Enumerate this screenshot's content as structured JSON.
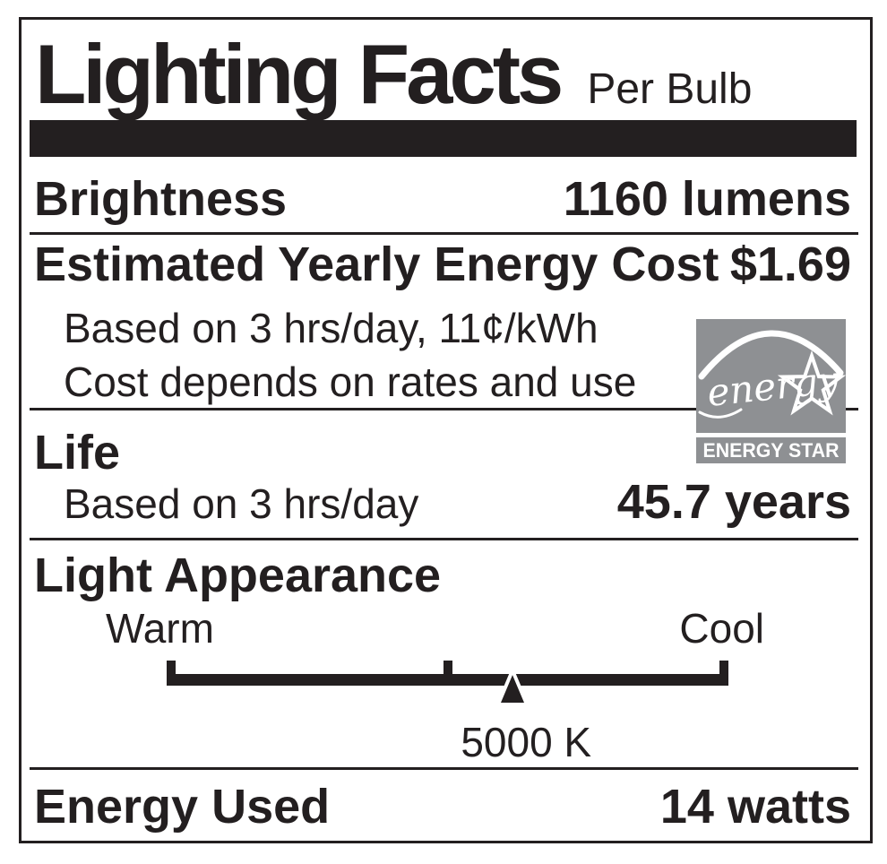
{
  "label": {
    "title": "Lighting Facts",
    "subtitle": "Per Bulb",
    "brightness": {
      "label": "Brightness",
      "value": "1160 lumens"
    },
    "energy_cost": {
      "label": "Estimated Yearly Energy Cost",
      "value": "$1.69",
      "basis": "Based on 3 hrs/day, 11¢/kWh",
      "note": "Cost depends on rates and use"
    },
    "life": {
      "label": "Life",
      "basis": "Based on 3 hrs/day",
      "value": "45.7 years"
    },
    "light_appearance": {
      "label": "Light Appearance",
      "warm": "Warm",
      "cool": "Cool",
      "kelvin": "5000 K",
      "marker_position_pct": 61.6,
      "mid_tick_position_pct": 50
    },
    "energy_used": {
      "label": "Energy Used",
      "value": "14 watts"
    },
    "energy_star": {
      "script": "energy",
      "bar": "ENERGY STAR"
    },
    "colors": {
      "ink": "#231f20",
      "logo_gray": "#8e9093",
      "paper": "#ffffff"
    }
  }
}
